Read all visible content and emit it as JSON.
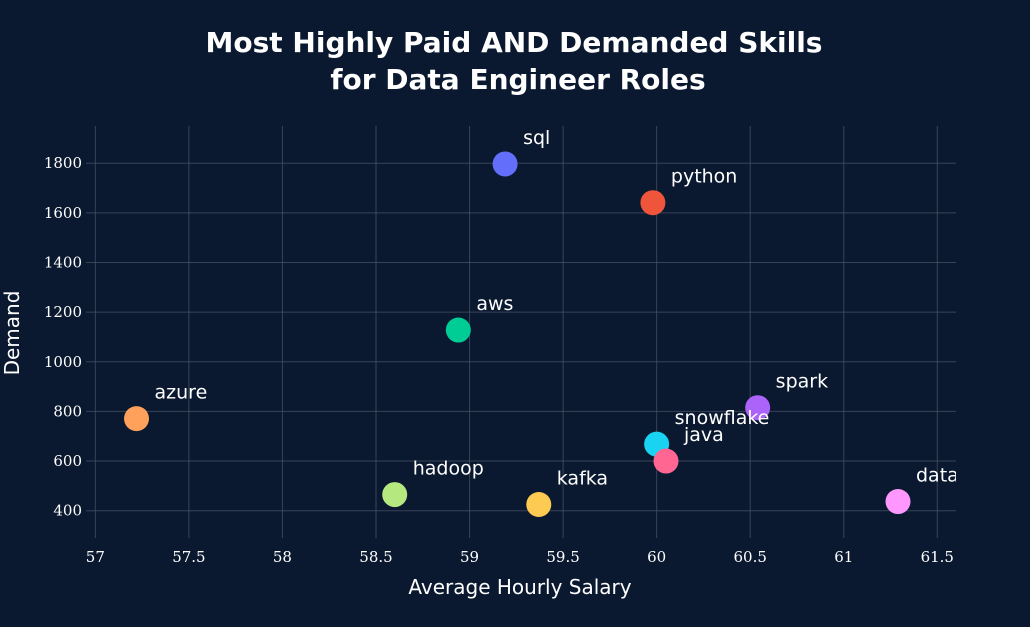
{
  "chart_data": {
    "type": "scatter",
    "title": "Most Highly Paid AND Demanded Skills",
    "subtitle": "for Data Engineer Roles",
    "xlabel": "Average Hourly Salary",
    "ylabel": "Demand",
    "xlim": [
      56.95,
      61.6
    ],
    "ylim": [
      290,
      1950
    ],
    "x_ticks": [
      57,
      57.5,
      58,
      58.5,
      59,
      59.5,
      60,
      60.5,
      61,
      61.5
    ],
    "x_tick_labels": [
      "57",
      "57.5",
      "58",
      "58.5",
      "59",
      "59.5",
      "60",
      "60.5",
      "61",
      "61.5"
    ],
    "y_ticks": [
      400,
      600,
      800,
      1000,
      1200,
      1400,
      1600,
      1800
    ],
    "y_tick_labels": [
      "400",
      "600",
      "800",
      "1000",
      "1200",
      "1400",
      "1600",
      "1800"
    ],
    "grid": true,
    "points": [
      {
        "label": "sql",
        "x": 59.19,
        "y": 1797,
        "color": "#636efa"
      },
      {
        "label": "python",
        "x": 59.98,
        "y": 1641,
        "color": "#ef553b"
      },
      {
        "label": "aws",
        "x": 58.94,
        "y": 1128,
        "color": "#00cc96"
      },
      {
        "label": "azure",
        "x": 57.22,
        "y": 771,
        "color": "#ffa15a"
      },
      {
        "label": "spark",
        "x": 60.54,
        "y": 815,
        "color": "#ab63fa"
      },
      {
        "label": "snowflake",
        "x": 60.0,
        "y": 668,
        "color": "#19d3f3"
      },
      {
        "label": "java",
        "x": 60.05,
        "y": 600,
        "color": "#ff6692"
      },
      {
        "label": "hadoop",
        "x": 58.6,
        "y": 465,
        "color": "#b6e880"
      },
      {
        "label": "kafka",
        "x": 59.37,
        "y": 425,
        "color": "#fecb52"
      },
      {
        "label": "databricks",
        "x": 61.29,
        "y": 437,
        "color": "#ff97ff"
      }
    ]
  }
}
